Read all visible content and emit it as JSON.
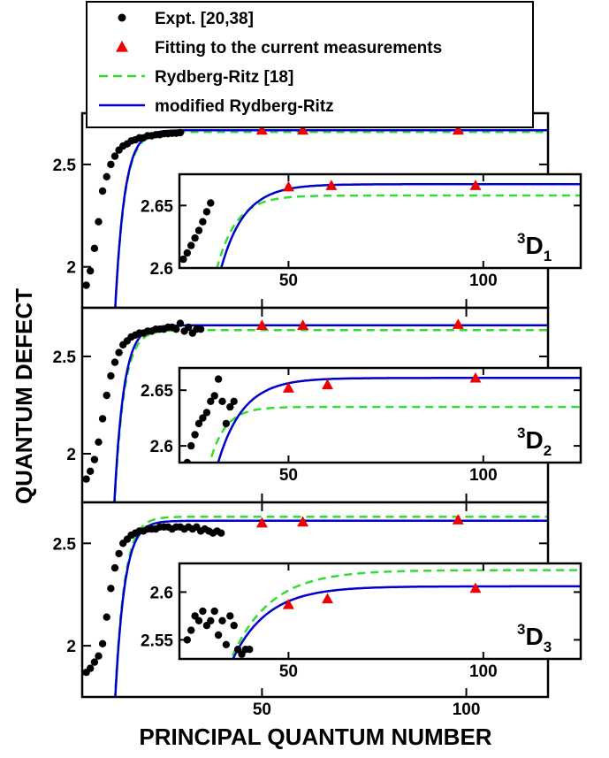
{
  "colors": {
    "expt": "#000000",
    "fit": "#ee0000",
    "rr": "#33dd33",
    "mrr": "#0000cc"
  },
  "axes": {
    "xlabel": "PRINCIPAL QUANTUM NUMBER",
    "ylabel": "QUANTUM DEFECT"
  },
  "legend": {
    "position": "top",
    "items": [
      {
        "label": "Expt. [20,38]",
        "marker": "circle"
      },
      {
        "label": "Fitting to the current measurements",
        "marker": "triangle"
      },
      {
        "label": "Rydberg-Ritz [18]",
        "marker": "dashed-line"
      },
      {
        "label": "modified Rydberg-Ritz",
        "marker": "solid-line"
      }
    ]
  },
  "chart_data": [
    {
      "type": "scatter",
      "panel": "3D1 main",
      "state": {
        "sup": "3",
        "letter": "D",
        "sub": "1"
      },
      "xlim": [
        6,
        120
      ],
      "ylim": [
        1.8,
        2.75
      ],
      "xticks": [
        50,
        100
      ],
      "yticks": [
        2,
        2.5
      ],
      "expt": {
        "x": [
          7,
          8,
          9,
          10,
          11,
          12,
          13,
          14,
          15,
          16,
          17,
          18,
          19,
          20,
          21,
          22,
          23,
          24,
          25,
          26,
          27,
          28,
          29,
          30
        ],
        "y": [
          1.91,
          1.98,
          2.09,
          2.22,
          2.37,
          2.44,
          2.5,
          2.54,
          2.57,
          2.59,
          2.6,
          2.615,
          2.62,
          2.63,
          2.63,
          2.64,
          2.64,
          2.645,
          2.645,
          2.65,
          2.65,
          2.652,
          2.652,
          2.655
        ]
      },
      "fit": {
        "x": [
          50,
          60,
          98
        ],
        "y": [
          2.668,
          2.668,
          2.668
        ]
      },
      "rr": {
        "delta0": 2.658,
        "a": 4.5,
        "n0": 10.3
      },
      "mrr": {
        "delta0": 2.667,
        "a": 4.5,
        "n0": 10.3
      }
    },
    {
      "type": "scatter",
      "panel": "3D1 inset",
      "xlim": [
        22,
        125
      ],
      "ylim": [
        2.6,
        2.675
      ],
      "xticks": [
        50,
        100
      ],
      "yticks": [
        2.6,
        2.65
      ],
      "expt": {
        "x": [
          23,
          24,
          25,
          26,
          27,
          28,
          29,
          30
        ],
        "y": [
          2.607,
          2.612,
          2.618,
          2.624,
          2.63,
          2.637,
          2.645,
          2.652
        ]
      },
      "fit": {
        "x": [
          50,
          61,
          98
        ],
        "y": [
          2.665,
          2.666,
          2.666
        ]
      },
      "rr_formula": "2.658-0.4*exp(-(n-22)/5)",
      "mrr_formula": "2.667-0.4*exp(-(n-22)/6)"
    },
    {
      "type": "scatter",
      "panel": "3D2 main",
      "state": {
        "sup": "3",
        "letter": "D",
        "sub": "2"
      },
      "xlim": [
        6,
        120
      ],
      "ylim": [
        1.75,
        2.75
      ],
      "xticks": [
        50,
        100
      ],
      "yticks": [
        2,
        2.5
      ],
      "expt": {
        "x": [
          7,
          8,
          9,
          10,
          11,
          12,
          13,
          14,
          15,
          16,
          17,
          18,
          19,
          20,
          21,
          22,
          23,
          24,
          25,
          26,
          27,
          28,
          29,
          30,
          31,
          32,
          33,
          34,
          35
        ],
        "y": [
          1.87,
          1.91,
          1.97,
          2.06,
          2.18,
          2.3,
          2.4,
          2.47,
          2.52,
          2.56,
          2.58,
          2.6,
          2.61,
          2.62,
          2.62,
          2.63,
          2.63,
          2.64,
          2.64,
          2.64,
          2.65,
          2.65,
          2.64,
          2.67,
          2.63,
          2.65,
          2.62,
          2.64,
          2.64
        ]
      },
      "fit": {
        "x": [
          50,
          60,
          98
        ],
        "y": [
          2.66,
          2.66,
          2.665
        ]
      },
      "rr": {
        "delta0": 2.635,
        "a": 4.5,
        "n0": 10.2
      },
      "mrr": {
        "delta0": 2.66,
        "a": 4.5,
        "n0": 10.2
      }
    },
    {
      "type": "scatter",
      "panel": "3D2 inset",
      "xlim": [
        22,
        125
      ],
      "ylim": [
        2.585,
        2.67
      ],
      "xticks": [
        50,
        100
      ],
      "yticks": [
        2.6,
        2.65
      ],
      "expt": {
        "x": [
          24,
          25,
          26,
          27,
          28,
          29,
          30,
          31,
          32,
          33,
          34,
          35,
          36
        ],
        "y": [
          2.585,
          2.6,
          2.61,
          2.62,
          2.625,
          2.63,
          2.64,
          2.645,
          2.66,
          2.64,
          2.62,
          2.635,
          2.64
        ]
      },
      "fit": {
        "x": [
          50,
          60,
          98
        ],
        "y": [
          2.652,
          2.655,
          2.661
        ]
      },
      "rr_formula": "2.635-0.35*exp(-(n-22)/4)",
      "mrr_formula": "2.661-0.35*exp(-(n-22)/6.5)"
    },
    {
      "type": "scatter",
      "panel": "3D3 main",
      "state": {
        "sup": "3",
        "letter": "D",
        "sub": "3"
      },
      "xlim": [
        6,
        120
      ],
      "ylim": [
        1.75,
        2.7
      ],
      "xticks": [
        50,
        100
      ],
      "yticks": [
        2,
        2.5
      ],
      "expt": {
        "x": [
          7,
          8,
          9,
          10,
          11,
          12,
          13,
          14,
          15,
          16,
          17,
          18,
          19,
          20,
          21,
          22,
          23,
          24,
          25,
          26,
          27,
          28,
          29,
          30,
          31,
          32,
          33,
          34,
          35,
          36,
          37,
          38,
          39,
          40
        ],
        "y": [
          1.87,
          1.89,
          1.92,
          1.95,
          2.01,
          2.14,
          2.28,
          2.38,
          2.45,
          2.5,
          2.52,
          2.54,
          2.55,
          2.56,
          2.56,
          2.57,
          2.57,
          2.57,
          2.58,
          2.58,
          2.58,
          2.57,
          2.58,
          2.58,
          2.57,
          2.58,
          2.57,
          2.58,
          2.56,
          2.57,
          2.56,
          2.55,
          2.56,
          2.55
        ]
      },
      "fit": {
        "x": [
          50,
          60,
          98
        ],
        "y": [
          2.6,
          2.605,
          2.615
        ]
      },
      "rr": {
        "delta0": 2.63,
        "a": 4.5,
        "n0": 10.3
      },
      "mrr": {
        "delta0": 2.61,
        "a": 4.5,
        "n0": 10.3
      }
    },
    {
      "type": "scatter",
      "panel": "3D3 inset",
      "xlim": [
        22,
        125
      ],
      "ylim": [
        2.53,
        2.63
      ],
      "xticks": [
        50,
        100
      ],
      "yticks": [
        2.55,
        2.6
      ],
      "expt": {
        "x": [
          24,
          25,
          26,
          27,
          28,
          29,
          30,
          31,
          32,
          33,
          34,
          35,
          36,
          37,
          38,
          39,
          40
        ],
        "y": [
          2.55,
          2.56,
          2.575,
          2.57,
          2.58,
          2.565,
          2.57,
          2.58,
          2.555,
          2.57,
          2.545,
          2.575,
          2.565,
          2.54,
          2.535,
          2.54,
          2.54
        ]
      },
      "fit": {
        "x": [
          50,
          60,
          98
        ],
        "y": [
          2.587,
          2.593,
          2.604
        ]
      },
      "rr_formula": "2.623-0.35*exp(-(n-22)/10)",
      "mrr_formula": "2.606-0.35*exp(-(n-22)/9)"
    }
  ]
}
